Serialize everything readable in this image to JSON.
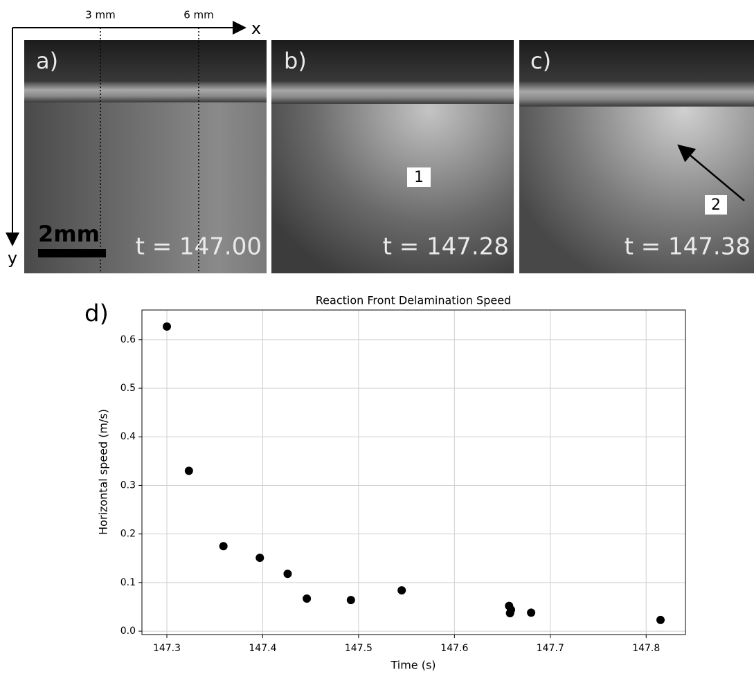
{
  "figure": {
    "axis_x": "x",
    "axis_y": "y",
    "marks": [
      "3 mm",
      "6 mm"
    ],
    "panels": [
      {
        "label": "a)",
        "time": "t = 147.00",
        "scale": "2mm"
      },
      {
        "label": "b)",
        "time": "t = 147.28",
        "annotation": "1"
      },
      {
        "label": "c)",
        "time": "t = 147.38",
        "annotation": "2"
      }
    ],
    "chart_label": "d)"
  },
  "chart_data": {
    "type": "scatter",
    "title": "Reaction Front Delamination Speed",
    "x_label": "Time (s)",
    "y_label": "Horizontal speed (m/s)",
    "color": "#000000",
    "x": [
      147.3,
      147.323,
      147.359,
      147.397,
      147.426,
      147.446,
      147.492,
      147.545,
      147.657,
      147.659,
      147.658,
      147.68,
      147.815
    ],
    "values": [
      0.627,
      0.33,
      0.175,
      0.151,
      0.118,
      0.067,
      0.064,
      0.084,
      0.052,
      0.044,
      0.037,
      0.038,
      0.023
    ],
    "xlim": [
      147.274,
      147.841
    ],
    "ylim": [
      -0.007,
      0.661
    ],
    "xticks": [
      147.3,
      147.4,
      147.5,
      147.6,
      147.7,
      147.8
    ],
    "yticks": [
      {
        "value": 0,
        "label": "0.0"
      },
      0.1,
      0.2,
      0.3,
      0.4,
      0.5,
      0.6
    ],
    "grid": true
  }
}
